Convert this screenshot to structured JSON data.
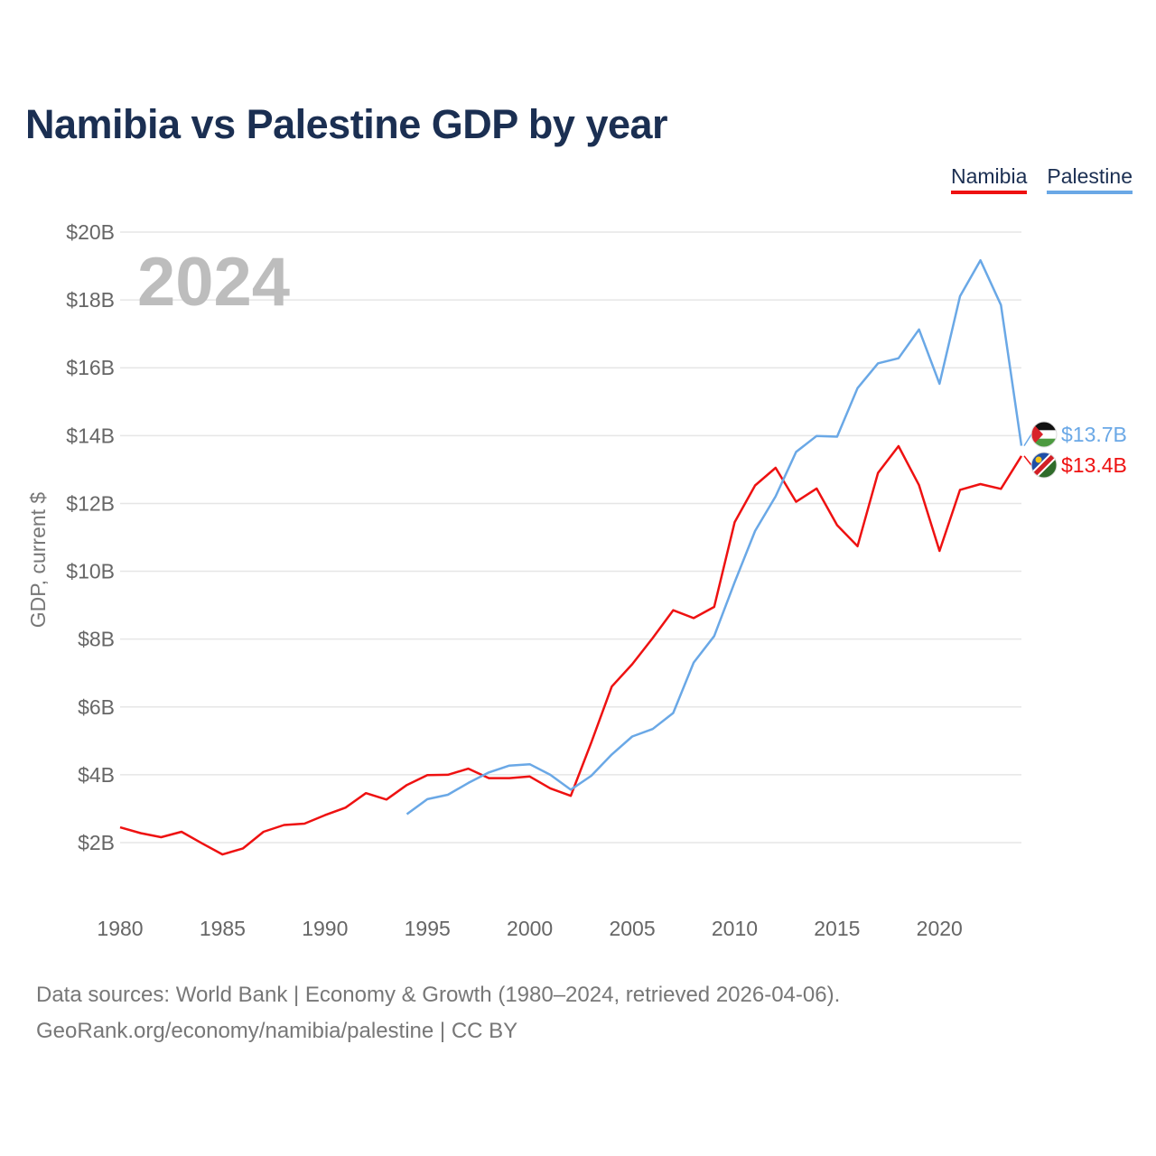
{
  "title": "Namibia vs Palestine GDP by year",
  "legend": [
    {
      "label": "Namibia",
      "color": "#ee1111"
    },
    {
      "label": "Palestine",
      "color": "#6aa8e6"
    }
  ],
  "source_line1": "Data sources: World Bank | Economy & Growth (1980–2024, retrieved 2026-04-06).",
  "source_line2": "GeoRank.org/economy/namibia/palestine | CC BY",
  "chart_data": {
    "type": "line",
    "title": "Namibia vs Palestine GDP by year",
    "xlabel": "",
    "ylabel": "GDP, current $",
    "watermark_year": "2024",
    "xlim": [
      1980,
      2024
    ],
    "ylim": [
      0,
      20
    ],
    "x_ticks": [
      1980,
      1985,
      1990,
      1995,
      2000,
      2005,
      2010,
      2015,
      2020
    ],
    "x_tick_labels": [
      "1980",
      "1985",
      "1990",
      "1995",
      "2000",
      "2005",
      "2010",
      "2015",
      "2020"
    ],
    "y_ticks": [
      2,
      4,
      6,
      8,
      10,
      12,
      14,
      16,
      18,
      20
    ],
    "y_tick_labels": [
      "$2B",
      "$4B",
      "$6B",
      "$8B",
      "$10B",
      "$12B",
      "$14B",
      "$16B",
      "$18B",
      "$20B"
    ],
    "grid": true,
    "series": [
      {
        "name": "Namibia",
        "color": "#ee1111",
        "end_label": "$13.4B",
        "x": [
          1980,
          1981,
          1982,
          1983,
          1984,
          1985,
          1986,
          1987,
          1988,
          1989,
          1990,
          1991,
          1992,
          1993,
          1994,
          1995,
          1996,
          1997,
          1998,
          1999,
          2000,
          2001,
          2002,
          2003,
          2004,
          2005,
          2006,
          2007,
          2008,
          2009,
          2010,
          2011,
          2012,
          2013,
          2014,
          2015,
          2016,
          2017,
          2018,
          2019,
          2020,
          2021,
          2022,
          2023,
          2024
        ],
        "values": [
          2.45,
          2.28,
          2.16,
          2.32,
          1.98,
          1.65,
          1.83,
          2.32,
          2.52,
          2.56,
          2.81,
          3.03,
          3.46,
          3.27,
          3.7,
          3.99,
          4.0,
          4.18,
          3.9,
          3.9,
          3.95,
          3.6,
          3.38,
          4.95,
          6.6,
          7.26,
          8.03,
          8.85,
          8.62,
          8.95,
          11.45,
          12.53,
          13.05,
          12.05,
          12.44,
          11.36,
          10.74,
          12.9,
          13.69,
          12.54,
          10.6,
          12.4,
          12.57,
          12.43,
          13.4
        ]
      },
      {
        "name": "Palestine",
        "color": "#6aa8e6",
        "end_label": "$13.7B",
        "x": [
          1994,
          1995,
          1996,
          1997,
          1998,
          1999,
          2000,
          2001,
          2002,
          2003,
          2004,
          2005,
          2006,
          2007,
          2008,
          2009,
          2010,
          2011,
          2012,
          2013,
          2014,
          2015,
          2016,
          2017,
          2018,
          2019,
          2020,
          2021,
          2022,
          2023,
          2024
        ],
        "values": [
          2.84,
          3.28,
          3.41,
          3.76,
          4.07,
          4.27,
          4.31,
          4.0,
          3.56,
          3.97,
          4.6,
          5.13,
          5.35,
          5.82,
          7.31,
          8.09,
          9.68,
          11.19,
          12.21,
          13.52,
          13.99,
          13.97,
          15.4,
          16.13,
          16.28,
          17.13,
          15.53,
          18.11,
          19.17,
          17.85,
          13.7
        ]
      }
    ]
  }
}
